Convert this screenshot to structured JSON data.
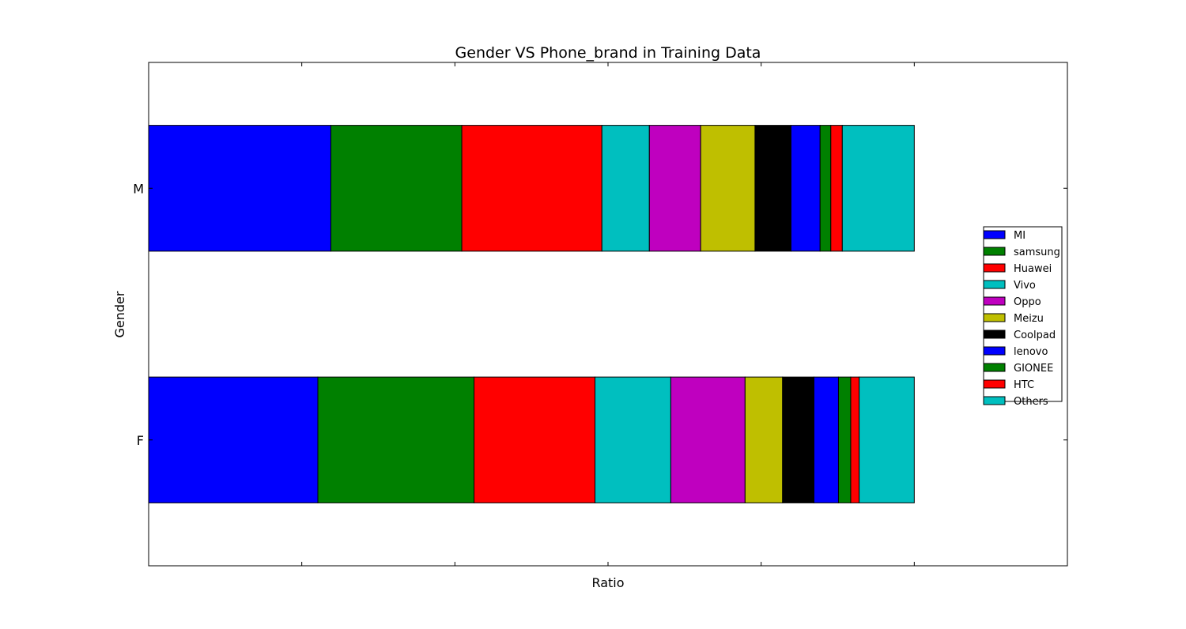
{
  "chart_data": {
    "type": "bar",
    "orientation": "horizontal",
    "stacked": true,
    "title": "Gender VS Phone_brand in Training Data",
    "xlabel": "Ratio",
    "ylabel": "Gender",
    "xlim": [
      0,
      1.2
    ],
    "categories": [
      "F",
      "M"
    ],
    "grid": false,
    "legend_position": "right",
    "series": [
      {
        "name": "MI",
        "color": "#0000ff",
        "values": [
          0.221,
          0.238
        ]
      },
      {
        "name": "samsung",
        "color": "#008000",
        "values": [
          0.204,
          0.171
        ]
      },
      {
        "name": "Huawei",
        "color": "#ff0000",
        "values": [
          0.158,
          0.183
        ]
      },
      {
        "name": "Vivo",
        "color": "#00bfbf",
        "values": [
          0.099,
          0.062
        ]
      },
      {
        "name": "Oppo",
        "color": "#bf00bf",
        "values": [
          0.097,
          0.067
        ]
      },
      {
        "name": "Meizu",
        "color": "#bfbf00",
        "values": [
          0.049,
          0.071
        ]
      },
      {
        "name": "Coolpad",
        "color": "#000000",
        "values": [
          0.041,
          0.047
        ]
      },
      {
        "name": "lenovo",
        "color": "#0000ff",
        "values": [
          0.032,
          0.038
        ]
      },
      {
        "name": "GIONEE",
        "color": "#008000",
        "values": [
          0.016,
          0.014
        ]
      },
      {
        "name": "HTC",
        "color": "#ff0000",
        "values": [
          0.011,
          0.015
        ]
      },
      {
        "name": "Others",
        "color": "#00bfbf",
        "values": [
          0.072,
          0.094
        ]
      }
    ]
  }
}
